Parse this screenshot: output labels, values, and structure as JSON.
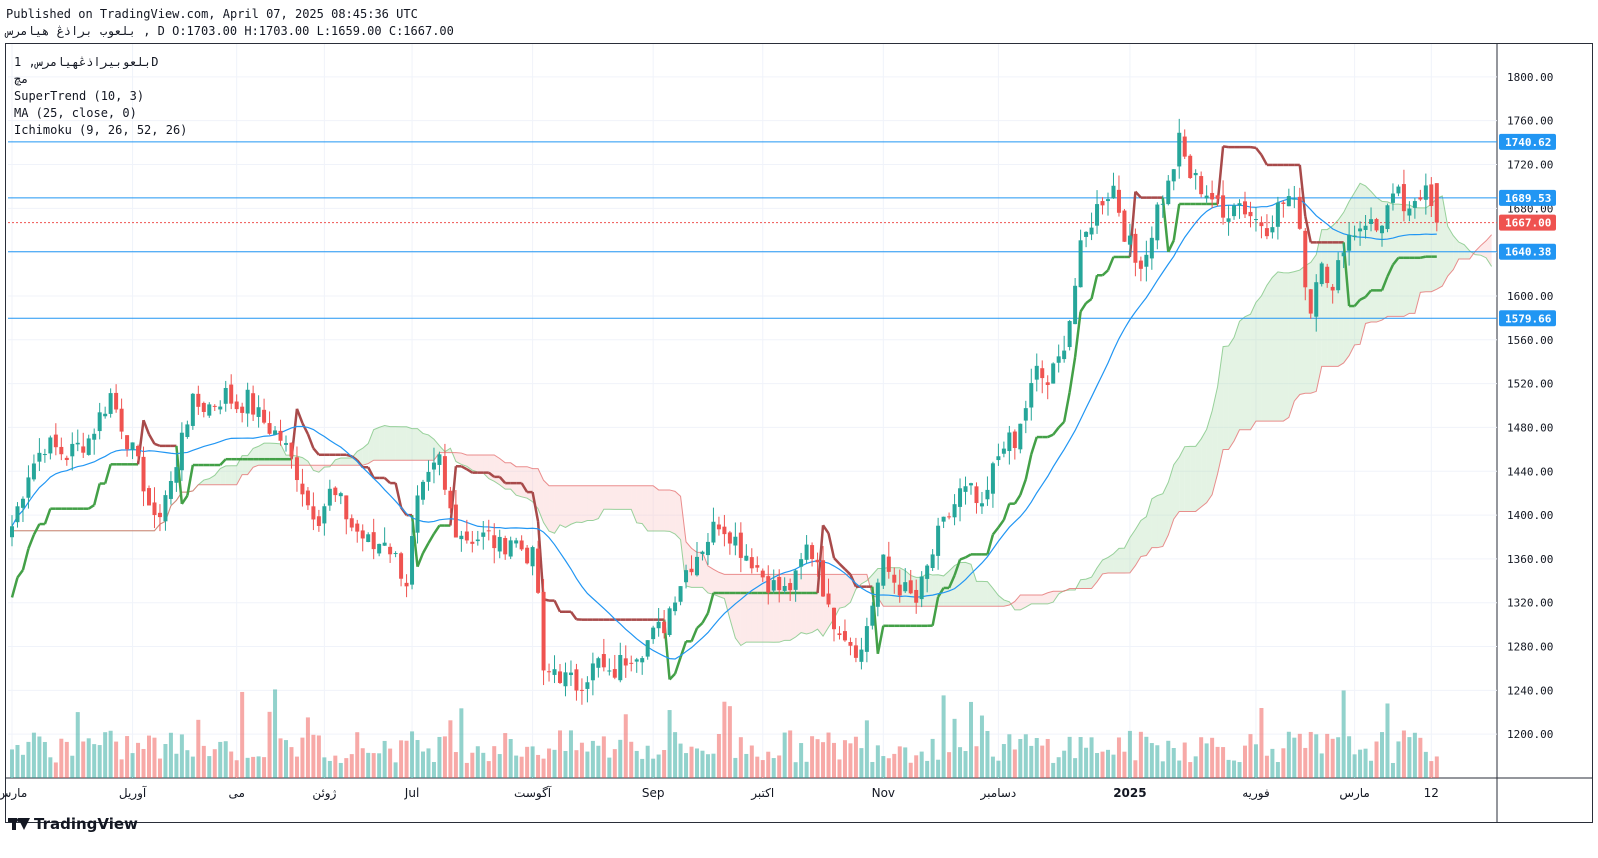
{
  "header": {
    "published": "Published on TradingView.com, April 07, 2025 08:45:36 UTC",
    "ohlc_line": "بلعوب براذڠ هیامرس , D O:1703.00 H:1703.00 L:1659.00 C:1667.00"
  },
  "legend": {
    "symbol_line": "بلعوبیراذڠهیامرس, 1D",
    "sub_line": "مچ",
    "supertrend": "SuperTrend (10, 3)",
    "ma": "MA (25, close, 0)",
    "ichimoku": "Ichimoku (9, 26, 52, 26)"
  },
  "branding": {
    "name": "TradingView"
  },
  "colors": {
    "up": "#26a69a",
    "down": "#ef5350",
    "supertrend_up": "#43a047",
    "supertrend_down": "#a84a4a",
    "ma": "#2196f3",
    "hline": "#2196f3",
    "last_price": "#ef5350"
  },
  "chart_data": {
    "type": "candlestick",
    "title": "",
    "y_axis": {
      "ylim": [
        1160,
        1830
      ],
      "ticks": [
        1200,
        1240,
        1280,
        1320,
        1360,
        1400,
        1440,
        1480,
        1520,
        1560,
        1600,
        1640,
        1680,
        1720,
        1760,
        1800
      ]
    },
    "x_axis": {
      "labels": [
        {
          "label": "مارس",
          "i": 0
        },
        {
          "label": "آوریل",
          "i": 22
        },
        {
          "label": "می",
          "i": 41
        },
        {
          "label": "ژوئن",
          "i": 57
        },
        {
          "label": "Jul",
          "i": 73
        },
        {
          "label": "آگوست",
          "i": 95
        },
        {
          "label": "Sep",
          "i": 117
        },
        {
          "label": "اکتبر",
          "i": 137
        },
        {
          "label": "Nov",
          "i": 159
        },
        {
          "label": "دسامبر",
          "i": 180
        },
        {
          "label": "2025",
          "i": 204
        },
        {
          "label": "فوریه",
          "i": 227
        },
        {
          "label": "مارس",
          "i": 245
        },
        {
          "label": "12",
          "i": 259
        }
      ]
    },
    "horizontal_lines": [
      1740.62,
      1689.53,
      1640.38,
      1579.66
    ],
    "last_price": 1667.0,
    "price_badges": [
      "1740.62",
      "1689.53",
      "1667.00",
      "1640.38",
      "1579.66"
    ],
    "anchors": [
      [
        0,
        1390
      ],
      [
        3,
        1440
      ],
      [
        6,
        1465
      ],
      [
        10,
        1455
      ],
      [
        14,
        1470
      ],
      [
        18,
        1510
      ],
      [
        21,
        1470
      ],
      [
        24,
        1430
      ],
      [
        26,
        1390
      ],
      [
        28,
        1420
      ],
      [
        30,
        1440
      ],
      [
        31,
        1480
      ],
      [
        33,
        1500
      ],
      [
        36,
        1500
      ],
      [
        39,
        1510
      ],
      [
        41,
        1500
      ],
      [
        43,
        1505
      ],
      [
        45,
        1490
      ],
      [
        47,
        1480
      ],
      [
        49,
        1470
      ],
      [
        52,
        1440
      ],
      [
        54,
        1410
      ],
      [
        56,
        1400
      ],
      [
        58,
        1420
      ],
      [
        60,
        1410
      ],
      [
        62,
        1390
      ],
      [
        64,
        1380
      ],
      [
        66,
        1370
      ],
      [
        68,
        1380
      ],
      [
        70,
        1360
      ],
      [
        72,
        1340
      ],
      [
        74,
        1410
      ],
      [
        76,
        1430
      ],
      [
        78,
        1450
      ],
      [
        79,
        1420
      ],
      [
        81,
        1390
      ],
      [
        83,
        1380
      ],
      [
        85,
        1380
      ],
      [
        87,
        1380
      ],
      [
        89,
        1370
      ],
      [
        91,
        1380
      ],
      [
        93,
        1370
      ],
      [
        95,
        1360
      ],
      [
        96,
        1330
      ],
      [
        97,
        1250
      ],
      [
        99,
        1260
      ],
      [
        101,
        1250
      ],
      [
        103,
        1245
      ],
      [
        105,
        1255
      ],
      [
        107,
        1265
      ],
      [
        109,
        1250
      ],
      [
        111,
        1265
      ],
      [
        113,
        1275
      ],
      [
        115,
        1280
      ],
      [
        117,
        1290
      ],
      [
        119,
        1300
      ],
      [
        121,
        1330
      ],
      [
        123,
        1350
      ],
      [
        125,
        1365
      ],
      [
        127,
        1380
      ],
      [
        129,
        1395
      ],
      [
        131,
        1385
      ],
      [
        133,
        1370
      ],
      [
        135,
        1360
      ],
      [
        137,
        1345
      ],
      [
        139,
        1335
      ],
      [
        141,
        1330
      ],
      [
        143,
        1340
      ],
      [
        145,
        1370
      ],
      [
        147,
        1360
      ],
      [
        149,
        1310
      ],
      [
        151,
        1300
      ],
      [
        153,
        1285
      ],
      [
        155,
        1275
      ],
      [
        156,
        1300
      ],
      [
        157,
        1320
      ],
      [
        159,
        1355
      ],
      [
        161,
        1340
      ],
      [
        163,
        1330
      ],
      [
        165,
        1320
      ],
      [
        167,
        1350
      ],
      [
        169,
        1380
      ],
      [
        171,
        1400
      ],
      [
        173,
        1420
      ],
      [
        175,
        1420
      ],
      [
        177,
        1400
      ],
      [
        179,
        1440
      ],
      [
        181,
        1470
      ],
      [
        183,
        1460
      ],
      [
        185,
        1500
      ],
      [
        187,
        1530
      ],
      [
        189,
        1520
      ],
      [
        191,
        1540
      ],
      [
        193,
        1580
      ],
      [
        195,
        1640
      ],
      [
        197,
        1670
      ],
      [
        199,
        1690
      ],
      [
        201,
        1700
      ],
      [
        203,
        1660
      ],
      [
        205,
        1630
      ],
      [
        207,
        1640
      ],
      [
        209,
        1680
      ],
      [
        211,
        1700
      ],
      [
        213,
        1740
      ],
      [
        215,
        1710
      ],
      [
        217,
        1700
      ],
      [
        219,
        1690
      ],
      [
        221,
        1670
      ],
      [
        223,
        1690
      ],
      [
        225,
        1680
      ],
      [
        227,
        1670
      ],
      [
        229,
        1665
      ],
      [
        231,
        1680
      ],
      [
        233,
        1690
      ],
      [
        235,
        1670
      ],
      [
        236,
        1610
      ],
      [
        237,
        1590
      ],
      [
        239,
        1640
      ],
      [
        241,
        1600
      ],
      [
        243,
        1650
      ],
      [
        245,
        1660
      ],
      [
        247,
        1670
      ],
      [
        249,
        1660
      ],
      [
        251,
        1680
      ],
      [
        253,
        1690
      ],
      [
        255,
        1670
      ],
      [
        257,
        1690
      ],
      [
        258,
        1710
      ],
      [
        260,
        1667
      ]
    ],
    "volume_hint": "relative volume bars, no axis printed"
  }
}
